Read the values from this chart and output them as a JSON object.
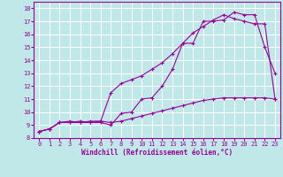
{
  "xlabel": "Windchill (Refroidissement éolien,°C)",
  "bg_color": "#c0e8e8",
  "line_color": "#990099",
  "grid_color": "#a0c8c8",
  "xlim": [
    -0.5,
    23.5
  ],
  "ylim": [
    8,
    18.5
  ],
  "xticks": [
    0,
    1,
    2,
    3,
    4,
    5,
    6,
    7,
    8,
    9,
    10,
    11,
    12,
    13,
    14,
    15,
    16,
    17,
    18,
    19,
    20,
    21,
    22,
    23
  ],
  "yticks": [
    8,
    9,
    10,
    11,
    12,
    13,
    14,
    15,
    16,
    17,
    18
  ],
  "line1_x": [
    0,
    1,
    2,
    3,
    4,
    5,
    6,
    7,
    8,
    9,
    10,
    11,
    12,
    13,
    14,
    15,
    16,
    17,
    18,
    19,
    20,
    21,
    22,
    23
  ],
  "line1_y": [
    8.5,
    8.7,
    9.2,
    9.2,
    9.2,
    9.2,
    9.2,
    9.0,
    9.9,
    10.0,
    11.0,
    11.1,
    12.0,
    13.3,
    15.3,
    15.3,
    17.0,
    17.0,
    17.1,
    17.7,
    17.5,
    17.5,
    15.0,
    13.0
  ],
  "line2_x": [
    0,
    1,
    2,
    3,
    4,
    5,
    6,
    7,
    8,
    9,
    10,
    11,
    12,
    13,
    14,
    15,
    16,
    17,
    18,
    19,
    20,
    21,
    22,
    23
  ],
  "line2_y": [
    8.5,
    8.7,
    9.2,
    9.2,
    9.3,
    9.2,
    9.3,
    11.5,
    12.2,
    12.5,
    12.8,
    13.3,
    13.8,
    14.5,
    15.3,
    16.1,
    16.6,
    17.1,
    17.5,
    17.2,
    17.0,
    16.8,
    16.8,
    11.0
  ],
  "line3_x": [
    0,
    1,
    2,
    3,
    4,
    5,
    6,
    7,
    8,
    9,
    10,
    11,
    12,
    13,
    14,
    15,
    16,
    17,
    18,
    19,
    20,
    21,
    22,
    23
  ],
  "line3_y": [
    8.5,
    8.7,
    9.2,
    9.3,
    9.2,
    9.3,
    9.3,
    9.2,
    9.3,
    9.5,
    9.7,
    9.9,
    10.1,
    10.3,
    10.5,
    10.7,
    10.9,
    11.0,
    11.1,
    11.1,
    11.1,
    11.1,
    11.1,
    11.0
  ],
  "tick_fontsize": 5.0,
  "label_fontsize": 5.5
}
